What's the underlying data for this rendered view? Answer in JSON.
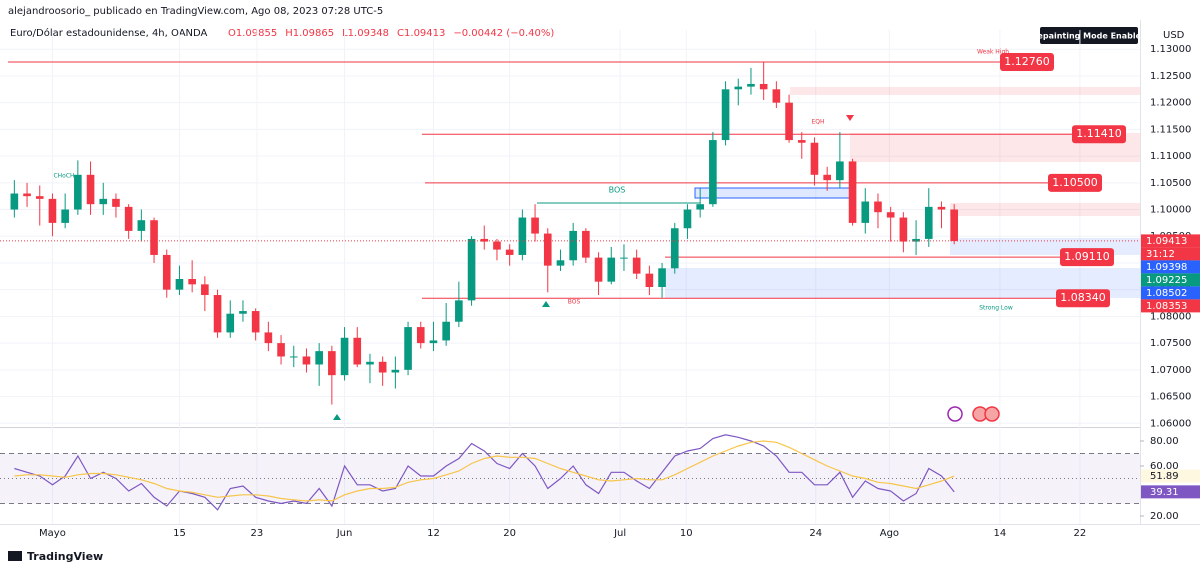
{
  "header": {
    "author_line": "alejandroosorio_ publicado en TradingView.com, Ago 08, 2023 07:28 UTC-5",
    "symbol": "Euro/Dólar estadounidense, 4h, OANDA",
    "legend_values": [
      "O1.09855",
      "H1.09865",
      "L1.09348",
      "C1.09413",
      "−0.00442 (−0.40%)"
    ],
    "badge": "Repainting Mode Enabled",
    "currency": "USD",
    "logo": "TradingView"
  },
  "chart_data": [
    {
      "type": "candlestick",
      "up_color": "#089981",
      "down_color": "#f23645",
      "grid": true,
      "open": [
        1.1,
        1.103,
        1.1025,
        1.102,
        1.0975,
        1.1,
        1.1065,
        1.101,
        1.102,
        1.1005,
        1.096,
        1.098,
        1.0915,
        1.085,
        1.087,
        1.086,
        1.084,
        1.077,
        1.0805,
        1.081,
        1.077,
        1.075,
        1.0725,
        1.0725,
        1.071,
        1.0735,
        1.069,
        1.076,
        1.071,
        1.0715,
        1.0695,
        1.07,
        1.078,
        1.075,
        1.0755,
        1.079,
        1.083,
        1.0945,
        1.094,
        1.0925,
        1.0915,
        1.0985,
        1.0955,
        1.0895,
        1.0905,
        1.096,
        1.091,
        1.0865,
        1.091,
        1.091,
        1.088,
        1.0855,
        1.089,
        1.0965,
        1.1,
        1.101,
        1.113,
        1.1225,
        1.123,
        1.1235,
        1.1225,
        1.12,
        1.113,
        1.1125,
        1.1065,
        1.1055,
        1.109,
        1.0975,
        1.1015,
        1.0995,
        1.0985,
        1.094,
        1.0945,
        1.1005,
        1.1
      ],
      "high": [
        1.1055,
        1.105,
        1.1045,
        1.103,
        1.103,
        1.1092,
        1.109,
        1.105,
        1.103,
        1.101,
        1.1,
        1.0985,
        1.0925,
        1.0895,
        1.0905,
        1.0875,
        1.085,
        1.083,
        1.083,
        1.0815,
        1.079,
        1.0765,
        1.0745,
        1.074,
        1.075,
        1.0745,
        1.078,
        1.078,
        1.073,
        1.0725,
        1.0725,
        1.079,
        1.079,
        1.079,
        1.0825,
        1.0865,
        1.095,
        1.097,
        1.0945,
        1.0935,
        1.1,
        1.101,
        1.0965,
        1.0925,
        1.0975,
        1.0965,
        1.092,
        1.093,
        1.0935,
        1.0925,
        1.0895,
        1.09,
        1.0975,
        1.101,
        1.104,
        1.1145,
        1.124,
        1.1245,
        1.1265,
        1.1276,
        1.124,
        1.1215,
        1.1145,
        1.1135,
        1.108,
        1.1145,
        1.1095,
        1.104,
        1.103,
        1.1005,
        1.0995,
        1.098,
        1.104,
        1.1015,
        1.101
      ],
      "low": [
        1.0985,
        1.1005,
        1.097,
        1.095,
        1.0965,
        1.099,
        1.099,
        1.099,
        1.0985,
        1.0945,
        1.094,
        1.09,
        1.0835,
        1.084,
        1.0845,
        1.081,
        1.076,
        1.076,
        1.079,
        1.0755,
        1.0735,
        1.071,
        1.0705,
        1.0695,
        1.067,
        1.0635,
        1.068,
        1.0705,
        1.0675,
        1.067,
        1.0665,
        1.069,
        1.074,
        1.0735,
        1.0745,
        1.078,
        1.082,
        1.0925,
        1.0905,
        1.0895,
        1.0905,
        1.094,
        1.0845,
        1.0885,
        1.0895,
        1.09,
        1.084,
        1.086,
        1.0885,
        1.087,
        1.084,
        1.0835,
        1.088,
        1.0945,
        1.0985,
        1.1005,
        1.112,
        1.1195,
        1.1215,
        1.1205,
        1.119,
        1.1125,
        1.1095,
        1.1045,
        1.1035,
        1.104,
        1.097,
        1.0955,
        1.0965,
        1.094,
        1.092,
        1.0915,
        1.093,
        1.0965,
        1.0935
      ],
      "close": [
        1.103,
        1.1025,
        1.102,
        1.0975,
        1.1,
        1.1065,
        1.101,
        1.102,
        1.1005,
        1.096,
        1.098,
        1.0915,
        1.085,
        1.087,
        1.086,
        1.084,
        1.077,
        1.0805,
        1.081,
        1.077,
        1.075,
        1.0725,
        1.0725,
        1.071,
        1.0735,
        1.069,
        1.076,
        1.071,
        1.0715,
        1.0695,
        1.07,
        1.078,
        1.075,
        1.0755,
        1.079,
        1.083,
        1.0945,
        1.094,
        1.0925,
        1.0915,
        1.0985,
        1.0955,
        1.0895,
        1.0905,
        1.096,
        1.091,
        1.0865,
        1.091,
        1.091,
        1.088,
        1.0855,
        1.089,
        1.0965,
        1.1,
        1.101,
        1.113,
        1.1225,
        1.123,
        1.1235,
        1.1225,
        1.12,
        1.113,
        1.1125,
        1.1065,
        1.1055,
        1.109,
        1.0975,
        1.1015,
        1.0995,
        1.0985,
        1.094,
        1.0945,
        1.1005,
        1.1,
        1.0941
      ],
      "xlim": [
        -0.5,
        88.6
      ],
      "xticks": [
        {
          "value": 3.0,
          "label": "Mayo"
        },
        {
          "value": 13.0,
          "label": "15"
        },
        {
          "value": 19.1,
          "label": "23"
        },
        {
          "value": 26.0,
          "label": "Jun"
        },
        {
          "value": 33.0,
          "label": "12"
        },
        {
          "value": 39.0,
          "label": "20"
        },
        {
          "value": 47.7,
          "label": "Jul"
        },
        {
          "value": 52.9,
          "label": "10"
        },
        {
          "value": 63.1,
          "label": "24"
        },
        {
          "value": 68.9,
          "label": "Ago"
        },
        {
          "value": 77.6,
          "label": "14"
        },
        {
          "value": 83.9,
          "label": "22"
        }
      ],
      "ylim": [
        1.0593,
        1.1336
      ],
      "yticks": [
        {
          "value": 1.06,
          "label": "1.06000"
        },
        {
          "value": 1.065,
          "label": "1.06500"
        },
        {
          "value": 1.07,
          "label": "1.07000"
        },
        {
          "value": 1.075,
          "label": "1.07500"
        },
        {
          "value": 1.08,
          "label": "1.08000"
        },
        {
          "value": 1.085,
          "label": "1.08500"
        },
        {
          "value": 1.09,
          "label": "1.09000"
        },
        {
          "value": 1.095,
          "label": "1.09500"
        },
        {
          "value": 1.1,
          "label": "1.10000"
        },
        {
          "value": 1.105,
          "label": "1.10500"
        },
        {
          "value": 1.11,
          "label": "1.11000"
        },
        {
          "value": 1.115,
          "label": "1.11500"
        },
        {
          "value": 1.12,
          "label": "1.12000"
        },
        {
          "value": 1.125,
          "label": "1.12500"
        },
        {
          "value": 1.13,
          "label": "1.13000"
        }
      ],
      "levels": [
        {
          "value": 1.1276,
          "label": "1.12760"
        },
        {
          "value": 1.1141,
          "label": "1.11410"
        },
        {
          "value": 1.105,
          "label": "1.10500"
        },
        {
          "value": 1.0911,
          "label": "1.09110"
        },
        {
          "value": 1.0834,
          "label": "1.08340"
        }
      ],
      "level_color": "#f23645",
      "axis_badges": [
        {
          "value": 1.09413,
          "label": "1.09413",
          "color": "#f23645"
        },
        {
          "value": 1.09398,
          "label": "1.09398",
          "color": "#2962ff"
        },
        {
          "value": 1.09225,
          "label": "1.09225",
          "color": "#089981"
        },
        {
          "value": 1.08502,
          "label": "1.08502",
          "color": "#2962ff"
        },
        {
          "value": 1.08353,
          "label": "1.08353",
          "color": "#f23645"
        }
      ],
      "countdown": "31:12",
      "annotations": [
        "BOS",
        "Weak High",
        "Strong Low",
        "CHoCH",
        "EQH",
        "BOS"
      ]
    },
    {
      "type": "line",
      "grid": true,
      "series": [
        {
          "color": "#7e57c2",
          "values": [
            58,
            55,
            52,
            45,
            52,
            68,
            50,
            55,
            50,
            40,
            46,
            35,
            28,
            40,
            38,
            35,
            25,
            42,
            44,
            35,
            32,
            30,
            32,
            30,
            42,
            28,
            60,
            45,
            45,
            40,
            42,
            60,
            52,
            52,
            60,
            66,
            78,
            72,
            62,
            58,
            70,
            60,
            42,
            50,
            60,
            45,
            38,
            55,
            55,
            48,
            42,
            55,
            68,
            72,
            74,
            82,
            85,
            83,
            80,
            76,
            68,
            55,
            55,
            45,
            45,
            55,
            35,
            48,
            42,
            40,
            32,
            38,
            58,
            52,
            39.31
          ]
        },
        {
          "color": "#f7c548",
          "values": [
            52,
            53,
            53,
            52,
            51,
            53,
            54,
            54,
            53,
            51,
            49,
            46,
            42,
            40,
            39,
            37,
            35,
            36,
            37,
            37,
            36,
            34,
            33,
            32,
            33,
            32,
            37,
            40,
            42,
            42,
            43,
            47,
            49,
            50,
            53,
            56,
            62,
            66,
            68,
            67,
            67,
            66,
            62,
            58,
            55,
            52,
            49,
            48,
            49,
            50,
            49,
            49,
            53,
            58,
            63,
            68,
            72,
            76,
            79,
            80,
            79,
            75,
            70,
            65,
            60,
            56,
            52,
            50,
            47,
            46,
            44,
            42,
            45,
            48,
            51.89
          ]
        }
      ],
      "ylim": [
        13.6,
        88.8
      ],
      "yticks": [
        {
          "value": 80,
          "label": "80.00"
        },
        {
          "value": 60,
          "label": "60.00"
        },
        {
          "value": 20,
          "label": "20.00"
        }
      ],
      "bands": [
        30,
        50,
        70
      ],
      "badges": [
        51.89,
        39.31
      ]
    }
  ]
}
